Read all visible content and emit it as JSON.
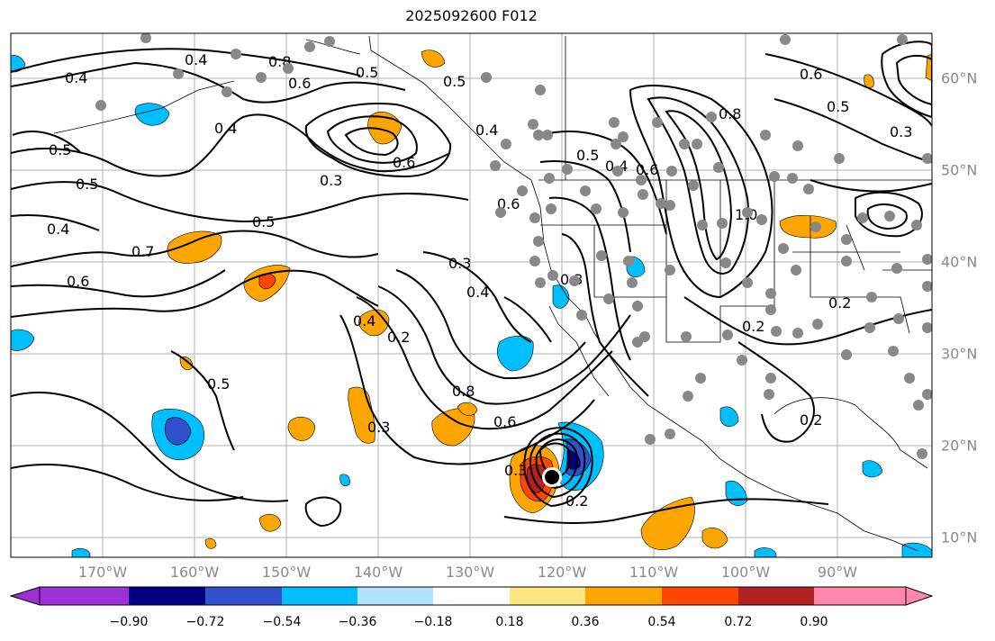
{
  "title": "2025092600 F012",
  "longitude_labels": [
    "170°W",
    "160°W",
    "150°W",
    "140°W",
    "130°W",
    "120°W",
    "110°W",
    "100°W",
    "90°W"
  ],
  "latitude_labels": [
    "60°N",
    "50°N",
    "40°N",
    "30°N",
    "20°N",
    "10°N"
  ],
  "colorbar": {
    "tick_labels": [
      "−0.90",
      "−0.72",
      "−0.54",
      "−0.36",
      "−0.18",
      "0.18",
      "0.36",
      "0.54",
      "0.72",
      "0.90"
    ],
    "colors": [
      "#9b30d9",
      "#000080",
      "#3050cc",
      "#00bfff",
      "#aee2ff",
      "#ffffff",
      "#ffe680",
      "#ffa500",
      "#ff4500",
      "#b22222",
      "#ff88aa"
    ]
  },
  "contour_labels": [
    "0.4",
    "0.8",
    "0.6",
    "0.5",
    "0.4",
    "0.4",
    "0.5",
    "0.6",
    "0.3",
    "0.5",
    "0.4",
    "0.7",
    "0.6",
    "0.5",
    "0.5",
    "0.4",
    "0.3",
    "0.4",
    "0.5",
    "0.4",
    "0.8",
    "0.6",
    "0.3",
    "0.2",
    "0.3",
    "0.2",
    "0.6",
    "0.5",
    "0.4",
    "0.6",
    "0.5",
    "0.8",
    "0.6",
    "0.3",
    "0.2",
    "1.0",
    "0.2",
    "0.3",
    "0.2"
  ],
  "colors": {
    "land": "#ffffff",
    "grid": "#b0b0b0",
    "station_dot": "#888888",
    "hurricane_center": "#000000"
  }
}
